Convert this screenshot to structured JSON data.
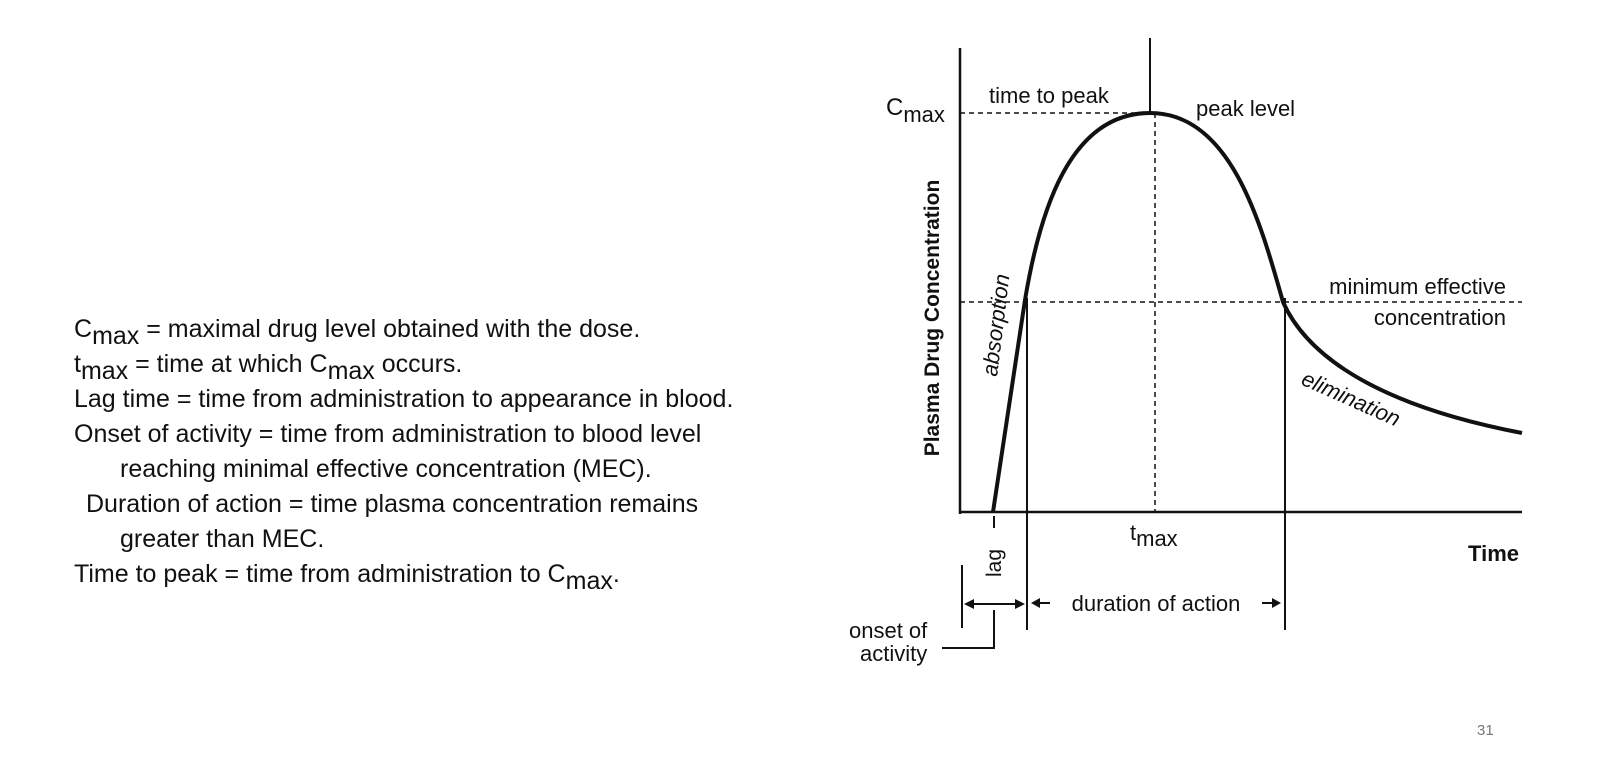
{
  "definitions": [
    {
      "pre": "C",
      "sub": "max",
      "post": " = maximal drug level obtained with the dose."
    },
    {
      "pre": "t",
      "sub": "max",
      "post": " = time at which C",
      "sub2": "max",
      "post2": " occurs."
    },
    {
      "pre": "Lag time = time from administration to appearance in blood."
    },
    {
      "pre": "Onset of activity = time from administration to blood level"
    },
    {
      "pre": "reaching minimal effective concentration (MEC)."
    },
    {
      "pre": "Duration of action = time plasma concentration remains"
    },
    {
      "pre": "greater than MEC."
    },
    {
      "pre": "Time to peak = time from administration to C",
      "sub": "max",
      "post": "."
    }
  ],
  "diagram": {
    "y_axis_label": "Plasma Drug Concentration",
    "x_axis_label": "Time",
    "cmax_label_main": "C",
    "cmax_label_sub": "max",
    "tmax_label_main": "t",
    "tmax_label_sub": "max",
    "time_to_peak": "time to peak",
    "peak_level": "peak level",
    "mec_line1": "minimum effective",
    "mec_line2": "concentration",
    "absorption": "absorption",
    "elimination": "elimination",
    "lag": "lag",
    "duration_of_action": "duration of action",
    "onset_line1": "onset of",
    "onset_line2": "activity"
  },
  "page_number": "31"
}
